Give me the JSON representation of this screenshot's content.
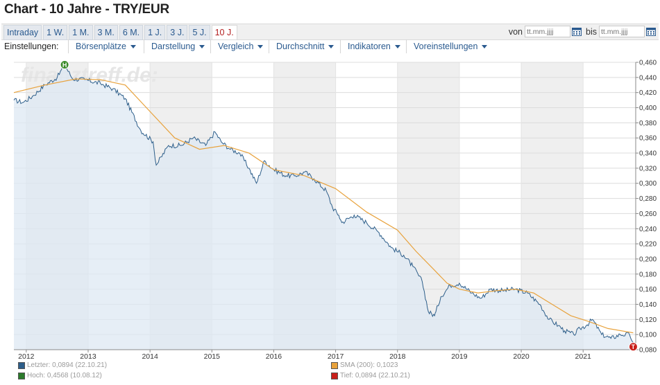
{
  "page": {
    "title": "Chart - 10 Jahre - TRY/EUR"
  },
  "ranges": {
    "items": [
      "Intraday",
      "1 W.",
      "1 M.",
      "3 M.",
      "6 M.",
      "1 J.",
      "3 J.",
      "5 J.",
      "10 J."
    ],
    "active_index": 8
  },
  "date_filter": {
    "from_label": "von",
    "from_placeholder": "tt.mm.jjjj",
    "to_label": "bis",
    "to_placeholder": "tt.mm.jjjj"
  },
  "settings": {
    "label": "Einstellungen:",
    "menus": [
      "Börsenplätze",
      "Darstellung",
      "Vergleich",
      "Durchschnitt",
      "Indikatoren",
      "Voreinstellungen"
    ]
  },
  "legend": {
    "last": "Letzter: 0,0894 (22.10.21)",
    "high": "Hoch: 0,4568 (10.08.12)",
    "sma": "SMA (200): 0,1023",
    "low": "Tief: 0,0894 (22.10.21)"
  },
  "colors": {
    "price_line": "#2d5e8a",
    "area_fill": "#dde8f3",
    "sma_line": "#e8a23c",
    "band": "#efefef",
    "high_marker": "#3a8a2a",
    "low_marker": "#c8201b",
    "legend_last": "#2d5e8a",
    "legend_high": "#2a7a2a",
    "legend_sma": "#e8a23c",
    "legend_low": "#c8201b"
  },
  "watermark": "finanztreff.de:",
  "chart_data": {
    "type": "area",
    "ylim": [
      0.08,
      0.46
    ],
    "yticks": [
      "0,080",
      "0,100",
      "0,120",
      "0,140",
      "0,160",
      "0,180",
      "0,200",
      "0,220",
      "0,240",
      "0,260",
      "0,280",
      "0,300",
      "0,320",
      "0,340",
      "0,360",
      "0,380",
      "0,400",
      "0,420",
      "0,440",
      "0,460"
    ],
    "xticks": [
      "2012",
      "2013",
      "2014",
      "2015",
      "2016",
      "2017",
      "2018",
      "2019",
      "2020",
      "2021"
    ],
    "xlim": [
      2011.8,
      2021.85
    ],
    "grid": true,
    "markers": {
      "high": "H",
      "low": "T"
    },
    "series": [
      {
        "name": "TRY/EUR",
        "x": [
          2011.8,
          2011.95,
          2012.1,
          2012.3,
          2012.5,
          2012.62,
          2012.75,
          2012.95,
          2013.2,
          2013.4,
          2013.6,
          2013.85,
          2014.05,
          2014.1,
          2014.3,
          2014.5,
          2014.7,
          2014.9,
          2015.05,
          2015.15,
          2015.3,
          2015.45,
          2015.6,
          2015.72,
          2015.85,
          2016.0,
          2016.2,
          2016.35,
          2016.5,
          2016.65,
          2016.85,
          2016.95,
          2017.05,
          2017.1,
          2017.3,
          2017.5,
          2017.7,
          2017.9,
          2018.1,
          2018.25,
          2018.4,
          2018.5,
          2018.6,
          2018.62,
          2018.7,
          2018.85,
          2019.0,
          2019.2,
          2019.35,
          2019.5,
          2019.7,
          2019.9,
          2020.1,
          2020.3,
          2020.45,
          2020.6,
          2020.7,
          2020.85,
          2020.95,
          2021.05,
          2021.15,
          2021.3,
          2021.45,
          2021.6,
          2021.75,
          2021.81
        ],
        "y": [
          0.41,
          0.407,
          0.415,
          0.43,
          0.44,
          0.4568,
          0.438,
          0.437,
          0.432,
          0.425,
          0.412,
          0.37,
          0.355,
          0.324,
          0.35,
          0.35,
          0.36,
          0.35,
          0.368,
          0.355,
          0.345,
          0.34,
          0.32,
          0.3,
          0.33,
          0.318,
          0.31,
          0.31,
          0.315,
          0.306,
          0.29,
          0.268,
          0.258,
          0.248,
          0.258,
          0.248,
          0.235,
          0.215,
          0.205,
          0.19,
          0.17,
          0.13,
          0.125,
          0.13,
          0.15,
          0.165,
          0.168,
          0.155,
          0.148,
          0.16,
          0.158,
          0.16,
          0.155,
          0.14,
          0.12,
          0.112,
          0.105,
          0.1,
          0.108,
          0.112,
          0.12,
          0.1,
          0.095,
          0.1,
          0.1,
          0.0894
        ]
      },
      {
        "name": "SMA (200)",
        "x": [
          2011.8,
          2012.3,
          2012.8,
          2013.2,
          2013.6,
          2014.0,
          2014.4,
          2014.8,
          2015.2,
          2015.6,
          2016.0,
          2016.5,
          2017.0,
          2017.5,
          2018.0,
          2018.3,
          2018.6,
          2018.8,
          2019.0,
          2019.3,
          2019.6,
          2019.9,
          2020.2,
          2020.5,
          2020.8,
          2021.1,
          2021.4,
          2021.81
        ],
        "y": [
          0.42,
          0.43,
          0.438,
          0.437,
          0.43,
          0.395,
          0.36,
          0.345,
          0.35,
          0.34,
          0.318,
          0.31,
          0.293,
          0.262,
          0.238,
          0.21,
          0.185,
          0.168,
          0.16,
          0.155,
          0.158,
          0.16,
          0.155,
          0.14,
          0.125,
          0.117,
          0.108,
          0.1023
        ]
      }
    ]
  }
}
